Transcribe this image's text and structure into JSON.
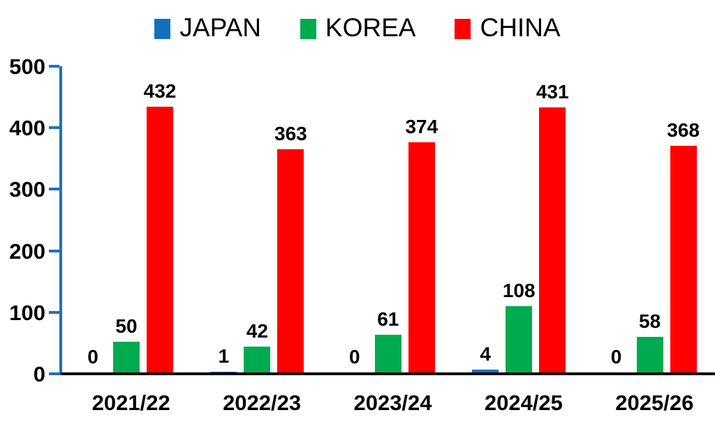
{
  "chart_data": {
    "type": "bar",
    "title": "",
    "categories": [
      "2021/22",
      "2022/23",
      "2023/24",
      "2024/25",
      "2025/26"
    ],
    "series": [
      {
        "name": "JAPAN",
        "color": "#1072BC",
        "values": [
          0,
          1,
          0,
          4,
          0
        ]
      },
      {
        "name": "KOREA",
        "color": "#00AB50",
        "values": [
          50,
          42,
          61,
          108,
          58
        ]
      },
      {
        "name": "CHINA",
        "color": "#FE0000",
        "values": [
          432,
          363,
          374,
          431,
          368
        ]
      }
    ],
    "ylim": [
      0,
      500
    ],
    "yticks": [
      0,
      100,
      200,
      300,
      400,
      500
    ],
    "xlabel": "",
    "ylabel": "",
    "legend_position": "top",
    "grid": false,
    "data_labels": true,
    "y_axis_color": "#2171B5",
    "x_axis_color": "#000000",
    "text_color": "#000000",
    "background_color": "#ffffff"
  }
}
